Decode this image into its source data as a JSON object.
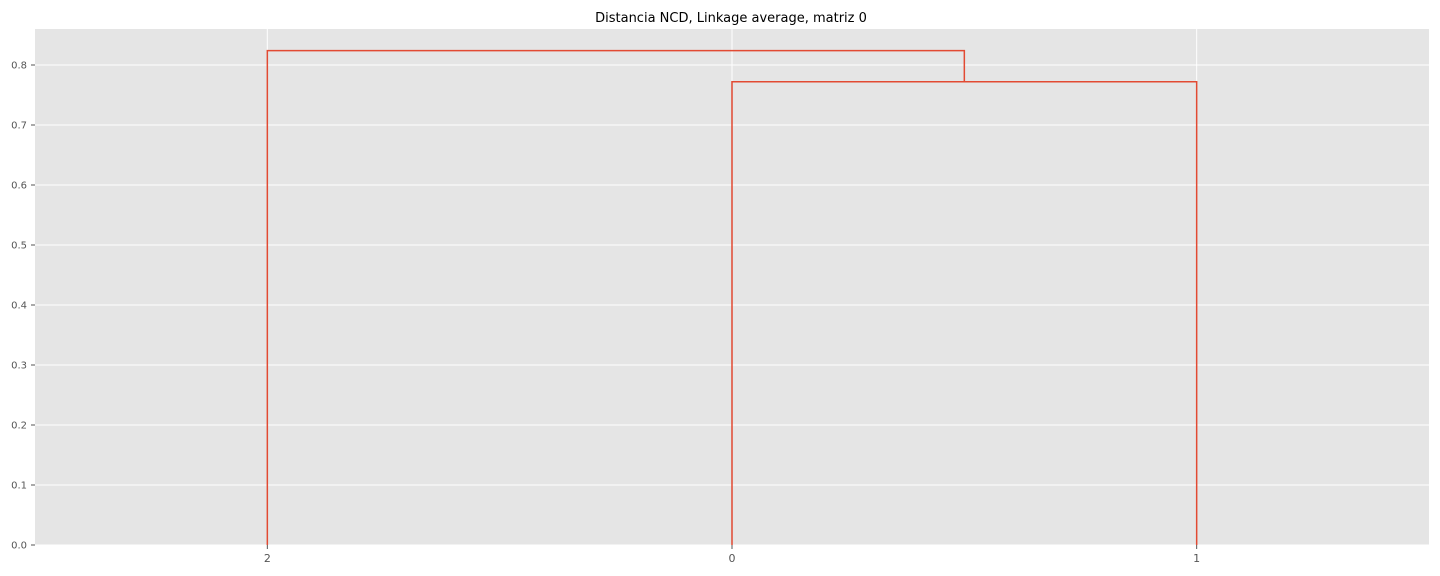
{
  "chart_data": {
    "type": "dendrogram",
    "title": "Distancia NCD, Linkage average, matriz 0",
    "xlabel": "",
    "ylabel": "",
    "leaves": [
      "2",
      "0",
      "1"
    ],
    "ylim": [
      0,
      0.86
    ],
    "y_ticks": [
      0.0,
      0.1,
      0.2,
      0.3,
      0.4,
      0.5,
      0.6,
      0.7,
      0.8
    ],
    "y_tick_labels": [
      "0.0",
      "0.1",
      "0.2",
      "0.3",
      "0.4",
      "0.5",
      "0.6",
      "0.7",
      "0.8"
    ],
    "merges": [
      {
        "left": "0",
        "right": "1",
        "height": 0.772
      },
      {
        "left": "2",
        "right": "(0,1)",
        "height": 0.824
      }
    ],
    "grid": true,
    "colors": {
      "background": "#E5E5E5",
      "grid": "#FFFFFF",
      "link": "#E24A33"
    }
  }
}
